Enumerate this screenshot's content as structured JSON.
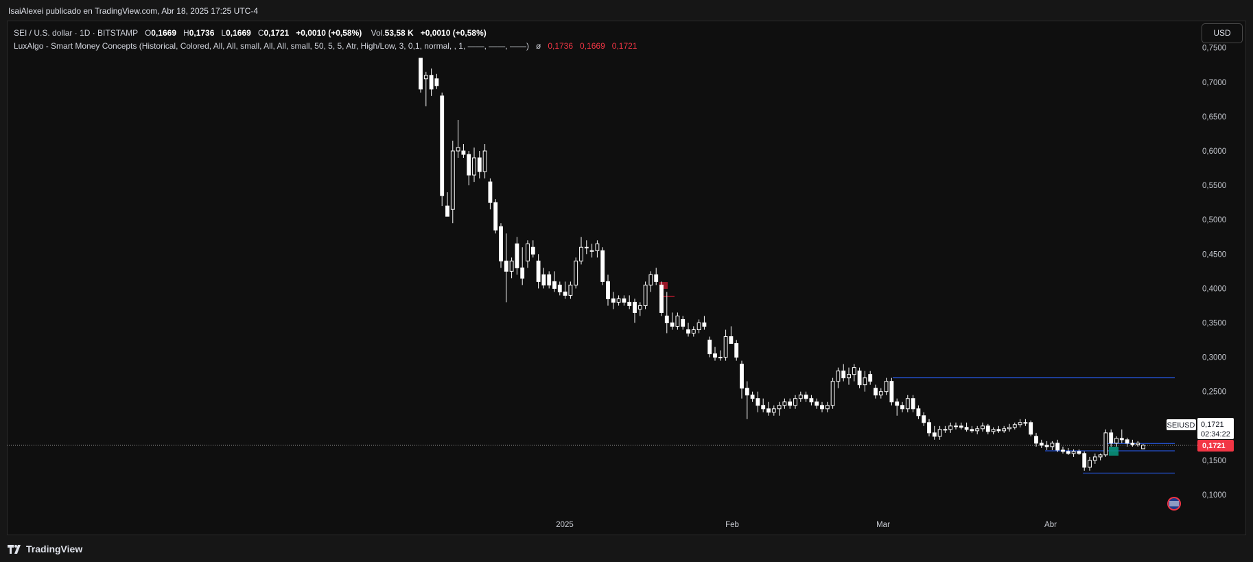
{
  "header": {
    "publisher": "IsaiAlexei publicado en TradingView.com, Abr 18, 2025 17:25 UTC-4"
  },
  "legend": {
    "symbol": "SEI / U.S. dollar · 1D · BITSTAMP",
    "o_label": "O",
    "o_value": "0,1669",
    "h_label": "H",
    "h_value": "0,1736",
    "l_label": "L",
    "l_value": "0,1669",
    "c_label": "C",
    "c_value": "0,1721",
    "change": "+0,0010 (+0,58%)",
    "vol_label": "Vol.",
    "vol_value": "53,58 K",
    "vol_change": "+0,0010 (+0,58%)",
    "indicator": "LuxAlgo - Smart Money Concepts (Historical, Colored, All, All, small, All, All, small, 50, 5, 5, Atr, High/Low, 3, 0,1, normal, , 1, ——, ——, ——)",
    "indicator_symbol": "ø",
    "indicator_values": [
      "0,1736",
      "0,1669",
      "0,1721"
    ]
  },
  "toolbar": {
    "currency": "USD"
  },
  "price_scale": {
    "ticks": [
      "0,7500",
      "0,7000",
      "0,6500",
      "0,6000",
      "0,5500",
      "0,5000",
      "0,4500",
      "0,4000",
      "0,3500",
      "0,3000",
      "0,2500",
      "0,1500",
      "0,1000"
    ],
    "symbol_tag": "SEIUSD",
    "last_price": "0,1721",
    "countdown": "02:34:22",
    "current_price_tag": "0,1721"
  },
  "time_scale": {
    "ticks": [
      "2025",
      "Feb",
      "Mar",
      "Abr"
    ]
  },
  "footer": {
    "brand": "TradingView"
  },
  "colors": {
    "background": "#0f0f0f",
    "candle": "#ffffff",
    "accent_red": "#f23645",
    "level_line": "#2962ff",
    "ob_green": "#089981",
    "ob_red": "#b2182b"
  },
  "chart_data": {
    "type": "candlestick",
    "symbol": "SEI / U.S. dollar",
    "interval": "1D",
    "ylim": [
      0.05,
      0.76
    ],
    "ohlc": [
      [
        0.735,
        0.735,
        0.685,
        0.69
      ],
      [
        0.705,
        0.715,
        0.665,
        0.71
      ],
      [
        0.71,
        0.72,
        0.68,
        0.69
      ],
      [
        0.705,
        0.712,
        0.69,
        0.695
      ],
      [
        0.68,
        0.685,
        0.52,
        0.535
      ],
      [
        0.52,
        0.54,
        0.505,
        0.505
      ],
      [
        0.515,
        0.615,
        0.495,
        0.6
      ],
      [
        0.6,
        0.645,
        0.59,
        0.605
      ],
      [
        0.6,
        0.61,
        0.59,
        0.595
      ],
      [
        0.595,
        0.6,
        0.55,
        0.565
      ],
      [
        0.565,
        0.605,
        0.555,
        0.59
      ],
      [
        0.59,
        0.6,
        0.56,
        0.57
      ],
      [
        0.57,
        0.61,
        0.56,
        0.6
      ],
      [
        0.555,
        0.56,
        0.515,
        0.525
      ],
      [
        0.525,
        0.53,
        0.48,
        0.485
      ],
      [
        0.49,
        0.495,
        0.43,
        0.44
      ],
      [
        0.44,
        0.48,
        0.38,
        0.425
      ],
      [
        0.425,
        0.445,
        0.415,
        0.44
      ],
      [
        0.465,
        0.475,
        0.42,
        0.43
      ],
      [
        0.43,
        0.46,
        0.405,
        0.415
      ],
      [
        0.44,
        0.47,
        0.43,
        0.465
      ],
      [
        0.46,
        0.47,
        0.445,
        0.45
      ],
      [
        0.44,
        0.45,
        0.4,
        0.41
      ],
      [
        0.42,
        0.43,
        0.4,
        0.405
      ],
      [
        0.42,
        0.425,
        0.4,
        0.405
      ],
      [
        0.41,
        0.425,
        0.395,
        0.4
      ],
      [
        0.405,
        0.41,
        0.39,
        0.395
      ],
      [
        0.395,
        0.41,
        0.385,
        0.39
      ],
      [
        0.39,
        0.41,
        0.385,
        0.405
      ],
      [
        0.405,
        0.445,
        0.4,
        0.44
      ],
      [
        0.44,
        0.475,
        0.435,
        0.46
      ],
      [
        0.46,
        0.47,
        0.45,
        0.46
      ],
      [
        0.455,
        0.465,
        0.445,
        0.455
      ],
      [
        0.455,
        0.47,
        0.445,
        0.465
      ],
      [
        0.455,
        0.46,
        0.405,
        0.41
      ],
      [
        0.41,
        0.42,
        0.375,
        0.385
      ],
      [
        0.385,
        0.395,
        0.37,
        0.38
      ],
      [
        0.38,
        0.39,
        0.375,
        0.385
      ],
      [
        0.385,
        0.39,
        0.375,
        0.38
      ],
      [
        0.38,
        0.39,
        0.37,
        0.375
      ],
      [
        0.38,
        0.385,
        0.35,
        0.365
      ],
      [
        0.37,
        0.38,
        0.36,
        0.375
      ],
      [
        0.375,
        0.41,
        0.37,
        0.405
      ],
      [
        0.405,
        0.425,
        0.395,
        0.42
      ],
      [
        0.42,
        0.43,
        0.405,
        0.41
      ],
      [
        0.405,
        0.41,
        0.36,
        0.365
      ],
      [
        0.36,
        0.395,
        0.335,
        0.35
      ],
      [
        0.35,
        0.365,
        0.34,
        0.345
      ],
      [
        0.345,
        0.365,
        0.34,
        0.36
      ],
      [
        0.355,
        0.36,
        0.34,
        0.345
      ],
      [
        0.34,
        0.35,
        0.33,
        0.335
      ],
      [
        0.335,
        0.345,
        0.33,
        0.34
      ],
      [
        0.34,
        0.355,
        0.335,
        0.35
      ],
      [
        0.35,
        0.36,
        0.34,
        0.345
      ],
      [
        0.325,
        0.33,
        0.3,
        0.305
      ],
      [
        0.305,
        0.315,
        0.295,
        0.3
      ],
      [
        0.3,
        0.31,
        0.295,
        0.3
      ],
      [
        0.3,
        0.34,
        0.295,
        0.33
      ],
      [
        0.33,
        0.345,
        0.32,
        0.32
      ],
      [
        0.32,
        0.325,
        0.295,
        0.3
      ],
      [
        0.29,
        0.295,
        0.24,
        0.255
      ],
      [
        0.255,
        0.265,
        0.21,
        0.245
      ],
      [
        0.245,
        0.25,
        0.235,
        0.24
      ],
      [
        0.24,
        0.25,
        0.22,
        0.23
      ],
      [
        0.23,
        0.24,
        0.22,
        0.225
      ],
      [
        0.225,
        0.235,
        0.215,
        0.22
      ],
      [
        0.22,
        0.23,
        0.215,
        0.225
      ],
      [
        0.225,
        0.235,
        0.215,
        0.23
      ],
      [
        0.23,
        0.24,
        0.225,
        0.235
      ],
      [
        0.235,
        0.24,
        0.225,
        0.23
      ],
      [
        0.23,
        0.245,
        0.225,
        0.24
      ],
      [
        0.24,
        0.25,
        0.235,
        0.245
      ],
      [
        0.245,
        0.25,
        0.235,
        0.24
      ],
      [
        0.24,
        0.245,
        0.23,
        0.235
      ],
      [
        0.235,
        0.24,
        0.225,
        0.23
      ],
      [
        0.23,
        0.235,
        0.22,
        0.225
      ],
      [
        0.225,
        0.235,
        0.22,
        0.23
      ],
      [
        0.23,
        0.27,
        0.225,
        0.265
      ],
      [
        0.265,
        0.285,
        0.255,
        0.28
      ],
      [
        0.28,
        0.29,
        0.265,
        0.27
      ],
      [
        0.27,
        0.285,
        0.26,
        0.275
      ],
      [
        0.275,
        0.29,
        0.265,
        0.285
      ],
      [
        0.28,
        0.285,
        0.255,
        0.26
      ],
      [
        0.26,
        0.28,
        0.25,
        0.27
      ],
      [
        0.275,
        0.28,
        0.26,
        0.265
      ],
      [
        0.255,
        0.26,
        0.24,
        0.245
      ],
      [
        0.245,
        0.255,
        0.24,
        0.25
      ],
      [
        0.25,
        0.27,
        0.245,
        0.265
      ],
      [
        0.265,
        0.27,
        0.23,
        0.235
      ],
      [
        0.235,
        0.24,
        0.215,
        0.23
      ],
      [
        0.23,
        0.235,
        0.22,
        0.225
      ],
      [
        0.225,
        0.245,
        0.22,
        0.24
      ],
      [
        0.24,
        0.245,
        0.22,
        0.225
      ],
      [
        0.225,
        0.23,
        0.21,
        0.215
      ],
      [
        0.215,
        0.22,
        0.2,
        0.205
      ],
      [
        0.205,
        0.21,
        0.185,
        0.19
      ],
      [
        0.19,
        0.2,
        0.18,
        0.185
      ],
      [
        0.185,
        0.2,
        0.18,
        0.195
      ],
      [
        0.195,
        0.2,
        0.19,
        0.195
      ],
      [
        0.195,
        0.205,
        0.19,
        0.2
      ],
      [
        0.2,
        0.205,
        0.195,
        0.2
      ],
      [
        0.2,
        0.205,
        0.195,
        0.198
      ],
      [
        0.198,
        0.205,
        0.192,
        0.195
      ],
      [
        0.195,
        0.2,
        0.19,
        0.193
      ],
      [
        0.193,
        0.2,
        0.188,
        0.196
      ],
      [
        0.196,
        0.205,
        0.192,
        0.2
      ],
      [
        0.2,
        0.203,
        0.188,
        0.192
      ],
      [
        0.192,
        0.198,
        0.188,
        0.195
      ],
      [
        0.195,
        0.2,
        0.19,
        0.193
      ],
      [
        0.193,
        0.2,
        0.19,
        0.196
      ],
      [
        0.196,
        0.203,
        0.192,
        0.198
      ],
      [
        0.198,
        0.205,
        0.195,
        0.202
      ],
      [
        0.202,
        0.21,
        0.198,
        0.205
      ],
      [
        0.205,
        0.21,
        0.2,
        0.205
      ],
      [
        0.205,
        0.208,
        0.185,
        0.188
      ],
      [
        0.185,
        0.19,
        0.17,
        0.175
      ],
      [
        0.175,
        0.18,
        0.168,
        0.172
      ],
      [
        0.172,
        0.178,
        0.165,
        0.17
      ],
      [
        0.17,
        0.178,
        0.165,
        0.175
      ],
      [
        0.175,
        0.18,
        0.162,
        0.165
      ],
      [
        0.165,
        0.17,
        0.16,
        0.163
      ],
      [
        0.163,
        0.168,
        0.158,
        0.16
      ],
      [
        0.16,
        0.166,
        0.155,
        0.163
      ],
      [
        0.163,
        0.166,
        0.158,
        0.16
      ],
      [
        0.16,
        0.163,
        0.135,
        0.14
      ],
      [
        0.14,
        0.155,
        0.135,
        0.15
      ],
      [
        0.15,
        0.16,
        0.145,
        0.155
      ],
      [
        0.155,
        0.16,
        0.15,
        0.158
      ],
      [
        0.158,
        0.195,
        0.155,
        0.19
      ],
      [
        0.19,
        0.195,
        0.17,
        0.175
      ],
      [
        0.175,
        0.185,
        0.17,
        0.182
      ],
      [
        0.182,
        0.195,
        0.175,
        0.18
      ],
      [
        0.18,
        0.183,
        0.17,
        0.175
      ],
      [
        0.175,
        0.18,
        0.17,
        0.173
      ],
      [
        0.173,
        0.178,
        0.17,
        0.175
      ],
      [
        0.1669,
        0.1736,
        0.1669,
        0.1721
      ]
    ],
    "levels": [
      0.27,
      0.1736,
      0.1669,
      0.1315
    ]
  }
}
